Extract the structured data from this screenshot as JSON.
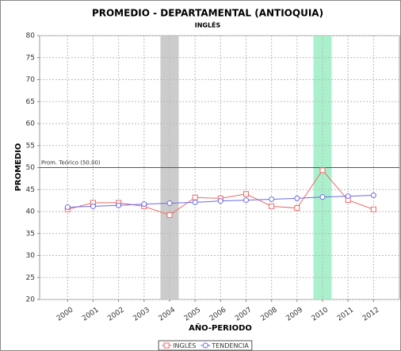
{
  "chart_data": {
    "type": "line",
    "title": "PROMEDIO - DEPARTAMENTAL (ANTIOQUIA)",
    "subtitle": "INGLÉS",
    "x_label": "AÑO-PERIODO",
    "y_label": "PROMEDIO",
    "categories": [
      "2000",
      "2001",
      "2002",
      "2003",
      "2004",
      "2005",
      "2006",
      "2007",
      "2008",
      "2009",
      "2010",
      "2011",
      "2012"
    ],
    "series": [
      {
        "name": "INGLÉS",
        "color": "#ee6a6a",
        "marker": "square",
        "values": [
          40.5,
          42.0,
          42.0,
          41.2,
          39.2,
          43.2,
          43.0,
          44.0,
          41.2,
          40.8,
          49.4,
          42.6,
          40.5
        ]
      },
      {
        "name": "TENDENCIA",
        "color": "#6a6aee",
        "marker": "circle",
        "values": [
          41.0,
          41.2,
          41.4,
          41.7,
          41.9,
          42.1,
          42.4,
          42.6,
          42.8,
          43.0,
          43.3,
          43.5,
          43.7
        ]
      }
    ],
    "reference_line": {
      "value": 50,
      "label": "Prom. Teórico (50.00)"
    },
    "highlight_categories": [
      {
        "category": "2004",
        "color": "#cccccc"
      },
      {
        "category": "2010",
        "color": "#aaf0cc"
      }
    ],
    "ylim": [
      20,
      80
    ],
    "yticks": [
      20,
      25,
      30,
      35,
      40,
      45,
      50,
      55,
      60,
      65,
      70,
      75,
      80
    ],
    "grid": true,
    "legend": "bottom"
  }
}
